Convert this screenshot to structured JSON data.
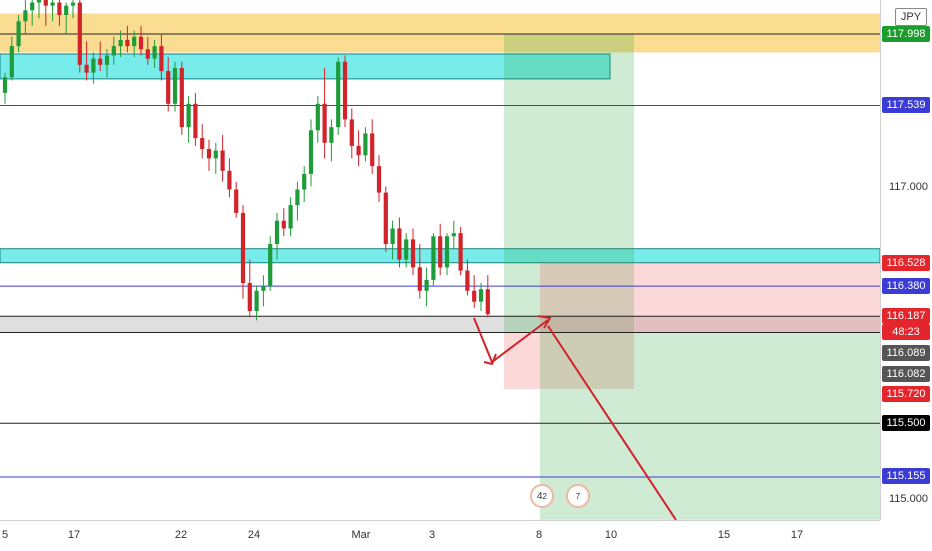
{
  "instrument": {
    "quote_currency": "JPY"
  },
  "chart_data": {
    "type": "candlestick",
    "y_range": [
      114.9,
      118.3
    ],
    "price_ticks": [
      "117.998",
      "117.539",
      "117.000",
      "116.528",
      "116.380",
      "116.187",
      "116.089",
      "116.082",
      "115.720",
      "115.500",
      "115.155",
      "115.000"
    ],
    "time_ticks": [
      "5",
      "17",
      "22",
      "24",
      "Mar",
      "3",
      "8",
      "10",
      "15",
      "17"
    ],
    "price_labels": [
      {
        "value": "117.998",
        "color": "#1d9c2e"
      },
      {
        "value": "117.539",
        "color": "#3b3bd6"
      },
      {
        "value": "116.528",
        "color": "#e5252c"
      },
      {
        "value": "116.380",
        "color": "#3b3bd6"
      },
      {
        "value": "116.187",
        "color": "#e5252c"
      },
      {
        "value": "116.089",
        "color": "#555555"
      },
      {
        "value": "116.082",
        "color": "#555555"
      },
      {
        "value": "115.720",
        "color": "#e5252c"
      },
      {
        "value": "115.500",
        "color": "#000000"
      },
      {
        "value": "115.155",
        "color": "#3b3bd6"
      }
    ],
    "countdown": "48:23",
    "plain_ticks": [
      "117.000",
      "115.000"
    ],
    "zones": [
      {
        "name": "supply-zone",
        "y1": 117.88,
        "y2": 118.13,
        "color": "#f9d77e"
      },
      {
        "name": "resistance-zone",
        "y1": 117.71,
        "y2": 117.87,
        "color": "#5fe9e6"
      },
      {
        "name": "support-zone",
        "y1": 116.53,
        "y2": 116.62,
        "color": "#5fe9e6"
      },
      {
        "name": "demand-zone",
        "y1": 116.08,
        "y2": 116.19,
        "color": "#d9d9d9"
      }
    ],
    "horizontal_lines": [
      {
        "name": "level-117998",
        "y": 117.998,
        "color": "#222222"
      },
      {
        "name": "level-117539",
        "y": 117.539,
        "color": "#3b3bd6"
      },
      {
        "name": "level-116380",
        "y": 116.38,
        "color": "#3b3bd6"
      },
      {
        "name": "level-116187",
        "y": 116.187,
        "color": "#222222"
      },
      {
        "name": "level-116082",
        "y": 116.082,
        "color": "#222222"
      },
      {
        "name": "level-115500",
        "y": 115.5,
        "color": "#222222"
      },
      {
        "name": "level-115155",
        "y": 115.155,
        "color": "#3b3bd6"
      }
    ],
    "candles": [
      [
        117.62,
        117.75,
        117.55,
        117.72
      ],
      [
        117.72,
        117.98,
        117.7,
        117.92
      ],
      [
        117.92,
        118.12,
        117.88,
        118.08
      ],
      [
        118.08,
        118.22,
        118.0,
        118.15
      ],
      [
        118.15,
        118.25,
        118.05,
        118.2
      ],
      [
        118.2,
        118.3,
        118.1,
        118.22
      ],
      [
        118.22,
        118.28,
        118.05,
        118.18
      ],
      [
        118.18,
        118.25,
        118.08,
        118.2
      ],
      [
        118.2,
        118.25,
        118.05,
        118.12
      ],
      [
        118.12,
        118.2,
        118.0,
        118.18
      ],
      [
        118.18,
        118.25,
        118.1,
        118.2
      ],
      [
        118.2,
        118.26,
        117.75,
        117.8
      ],
      [
        117.8,
        117.95,
        117.7,
        117.75
      ],
      [
        117.75,
        117.88,
        117.68,
        117.84
      ],
      [
        117.84,
        117.95,
        117.76,
        117.8
      ],
      [
        117.8,
        117.9,
        117.72,
        117.86
      ],
      [
        117.86,
        117.98,
        117.8,
        117.92
      ],
      [
        117.92,
        118.02,
        117.85,
        117.96
      ],
      [
        117.96,
        118.05,
        117.88,
        117.92
      ],
      [
        117.92,
        118.02,
        117.85,
        117.98
      ],
      [
        117.98,
        118.05,
        117.86,
        117.9
      ],
      [
        117.9,
        117.98,
        117.8,
        117.84
      ],
      [
        117.84,
        117.96,
        117.78,
        117.92
      ],
      [
        117.92,
        118.0,
        117.7,
        117.76
      ],
      [
        117.76,
        117.85,
        117.5,
        117.55
      ],
      [
        117.55,
        117.82,
        117.5,
        117.78
      ],
      [
        117.78,
        117.82,
        117.35,
        117.4
      ],
      [
        117.4,
        117.6,
        117.3,
        117.55
      ],
      [
        117.55,
        117.62,
        117.28,
        117.33
      ],
      [
        117.33,
        117.42,
        117.2,
        117.26
      ],
      [
        117.26,
        117.32,
        117.12,
        117.2
      ],
      [
        117.2,
        117.3,
        117.1,
        117.25
      ],
      [
        117.25,
        117.35,
        117.05,
        117.12
      ],
      [
        117.12,
        117.2,
        116.95,
        117.0
      ],
      [
        117.0,
        117.05,
        116.82,
        116.85
      ],
      [
        116.85,
        116.9,
        116.3,
        116.4
      ],
      [
        116.4,
        116.55,
        116.18,
        116.22
      ],
      [
        116.22,
        116.38,
        116.16,
        116.35
      ],
      [
        116.35,
        116.45,
        116.25,
        116.38
      ],
      [
        116.38,
        116.7,
        116.35,
        116.65
      ],
      [
        116.65,
        116.85,
        116.55,
        116.8
      ],
      [
        116.8,
        116.88,
        116.7,
        116.75
      ],
      [
        116.75,
        116.95,
        116.7,
        116.9
      ],
      [
        116.9,
        117.05,
        116.8,
        117.0
      ],
      [
        117.0,
        117.15,
        116.92,
        117.1
      ],
      [
        117.1,
        117.45,
        117.02,
        117.38
      ],
      [
        117.38,
        117.6,
        117.3,
        117.55
      ],
      [
        117.55,
        117.78,
        117.2,
        117.3
      ],
      [
        117.3,
        117.45,
        117.18,
        117.4
      ],
      [
        117.4,
        117.85,
        117.35,
        117.82
      ],
      [
        117.82,
        117.86,
        117.4,
        117.45
      ],
      [
        117.45,
        117.52,
        117.2,
        117.28
      ],
      [
        117.28,
        117.38,
        117.15,
        117.22
      ],
      [
        117.22,
        117.4,
        117.18,
        117.36
      ],
      [
        117.36,
        117.45,
        117.1,
        117.15
      ],
      [
        117.15,
        117.22,
        116.92,
        116.98
      ],
      [
        116.98,
        117.02,
        116.6,
        116.65
      ],
      [
        116.65,
        116.8,
        116.55,
        116.75
      ],
      [
        116.75,
        116.82,
        116.5,
        116.55
      ],
      [
        116.55,
        116.72,
        116.5,
        116.68
      ],
      [
        116.68,
        116.75,
        116.45,
        116.5
      ],
      [
        116.5,
        116.65,
        116.3,
        116.35
      ],
      [
        116.35,
        116.5,
        116.25,
        116.42
      ],
      [
        116.42,
        116.72,
        116.38,
        116.7
      ],
      [
        116.7,
        116.78,
        116.45,
        116.5
      ],
      [
        116.5,
        116.72,
        116.45,
        116.7
      ],
      [
        116.7,
        116.8,
        116.62,
        116.72
      ],
      [
        116.72,
        116.76,
        116.45,
        116.48
      ],
      [
        116.48,
        116.55,
        116.32,
        116.35
      ],
      [
        116.35,
        116.45,
        116.24,
        116.28
      ],
      [
        116.28,
        116.4,
        116.22,
        116.36
      ],
      [
        116.36,
        116.45,
        116.18,
        116.2
      ]
    ],
    "bullish_color": "#1f9c3a",
    "bearish_color": "#d1232a",
    "positions": [
      {
        "name": "long-position-1",
        "x1": 504,
        "x2": 634,
        "entry": 116.09,
        "stop": 115.72,
        "target": 117.998
      },
      {
        "name": "long-position-2",
        "x1": 540,
        "x2": 880,
        "entry": 116.53,
        "stop": 116.09,
        "target": 114.88
      }
    ],
    "event_markers": [
      {
        "name": "event-marker-1",
        "label": "4",
        "count": "2"
      },
      {
        "name": "event-marker-2",
        "label": "",
        "count": "7"
      }
    ]
  }
}
